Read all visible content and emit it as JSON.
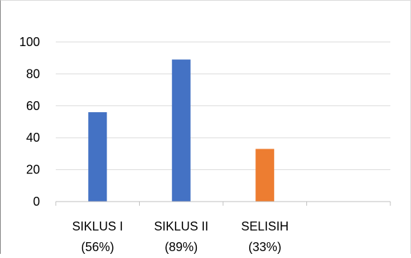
{
  "chart_data": {
    "type": "bar",
    "categories": [
      {
        "line1": "SIKLUS I",
        "line2": "(56%)"
      },
      {
        "line1": "SIKLUS II",
        "line2": "(89%)"
      },
      {
        "line1": "SELISIH",
        "line2": "(33%)"
      },
      {
        "line1": "",
        "line2": ""
      }
    ],
    "values": [
      56,
      89,
      33,
      null
    ],
    "bar_colors": [
      "#4472c4",
      "#4472c4",
      "#ed7d31",
      null
    ],
    "ylim": [
      0,
      100
    ],
    "yticks": [
      0,
      20,
      40,
      60,
      80,
      100
    ],
    "title": "",
    "xlabel": "",
    "ylabel": "",
    "grid": true,
    "legend": "none"
  },
  "colors": {
    "gridline": "#d9d9d9",
    "axis": "#bfbfbf"
  }
}
